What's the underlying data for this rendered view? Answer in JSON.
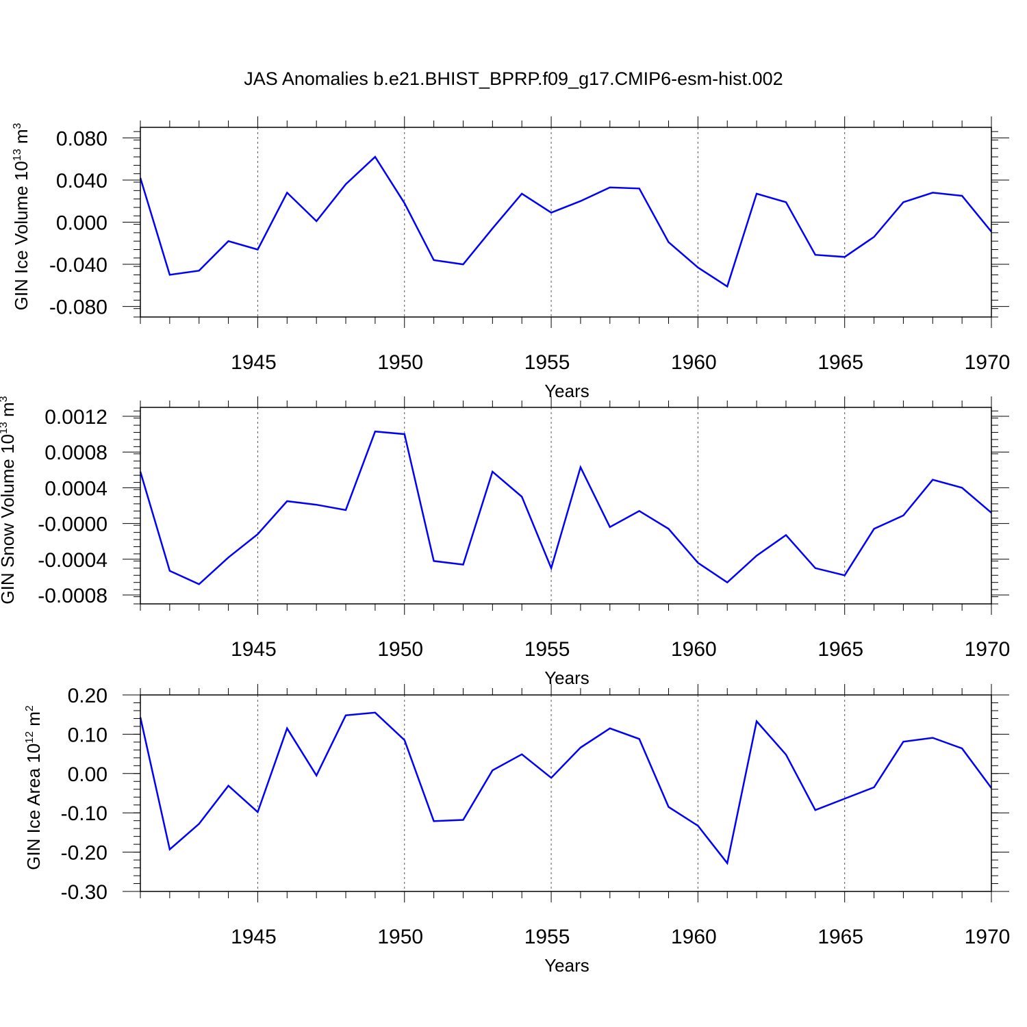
{
  "title": "JAS Anomalies b.e21.BHIST_BPRP.f09_g17.CMIP6-esm-hist.002",
  "line_color": "#0000ff",
  "chart_data": [
    {
      "type": "line",
      "ylabel": "GIN Ice Volume 10",
      "ylabel_sup": "13",
      "ylabel_unit": "m",
      "ylabel_unit_sup": "3",
      "xlabel": "Years",
      "xlim": [
        1941,
        1970
      ],
      "ylim": [
        -0.09,
        0.09
      ],
      "yticks": [
        -0.08,
        -0.04,
        0.0,
        0.04,
        0.08
      ],
      "ytick_labels": [
        "-0.080",
        "-0.040",
        "0.000",
        "0.040",
        "0.080"
      ],
      "xticks": [
        1945,
        1950,
        1955,
        1960,
        1965,
        1970
      ],
      "xtick_labels": [
        "1945",
        "1950",
        "1955",
        "1960",
        "1965",
        "1970"
      ],
      "x": [
        1941,
        1942,
        1943,
        1944,
        1945,
        1946,
        1947,
        1948,
        1949,
        1950,
        1951,
        1952,
        1953,
        1954,
        1955,
        1956,
        1957,
        1958,
        1959,
        1960,
        1961,
        1962,
        1963,
        1964,
        1965,
        1966,
        1967,
        1968,
        1969,
        1970
      ],
      "values": [
        0.042,
        -0.05,
        -0.046,
        -0.018,
        -0.026,
        0.028,
        0.001,
        0.036,
        0.062,
        0.018,
        -0.036,
        -0.04,
        -0.006,
        0.027,
        0.009,
        0.02,
        0.033,
        0.032,
        -0.019,
        -0.043,
        -0.061,
        0.027,
        0.019,
        -0.031,
        -0.033,
        -0.014,
        0.019,
        0.028,
        0.025,
        -0.009
      ]
    },
    {
      "type": "line",
      "ylabel": "GIN Snow Volume 10",
      "ylabel_sup": "13",
      "ylabel_unit": "m",
      "ylabel_unit_sup": "3",
      "xlabel": "Years",
      "xlim": [
        1941,
        1970
      ],
      "ylim": [
        -0.0009,
        0.0013
      ],
      "yticks": [
        -0.0008,
        -0.0004,
        0.0,
        0.0004,
        0.0008,
        0.0012
      ],
      "ytick_labels": [
        "-0.0008",
        "-0.0004",
        "-0.0000",
        "0.0004",
        "0.0008",
        "0.0012"
      ],
      "xticks": [
        1945,
        1950,
        1955,
        1960,
        1965,
        1970
      ],
      "xtick_labels": [
        "1945",
        "1950",
        "1955",
        "1960",
        "1965",
        "1970"
      ],
      "x": [
        1941,
        1942,
        1943,
        1944,
        1945,
        1946,
        1947,
        1948,
        1949,
        1950,
        1951,
        1952,
        1953,
        1954,
        1955,
        1956,
        1957,
        1958,
        1959,
        1960,
        1961,
        1962,
        1963,
        1964,
        1965,
        1966,
        1967,
        1968,
        1969,
        1970
      ],
      "values": [
        0.00058,
        -0.00053,
        -0.00068,
        -0.00038,
        -0.00012,
        0.00025,
        0.00021,
        0.00015,
        0.00103,
        0.001,
        -0.00042,
        -0.00046,
        0.00058,
        0.0003,
        -0.0005,
        0.00063,
        -4e-05,
        0.00014,
        -6e-05,
        -0.00044,
        -0.00066,
        -0.00036,
        -0.00013,
        -0.0005,
        -0.00058,
        -6e-05,
        9e-05,
        0.00049,
        0.0004,
        0.00012
      ]
    },
    {
      "type": "line",
      "ylabel": "GIN Ice Area 10",
      "ylabel_sup": "12",
      "ylabel_unit": "m",
      "ylabel_unit_sup": "2",
      "xlabel": "Years",
      "xlim": [
        1941,
        1970
      ],
      "ylim": [
        -0.3,
        0.2
      ],
      "yticks": [
        -0.3,
        -0.2,
        -0.1,
        0.0,
        0.1,
        0.2
      ],
      "ytick_labels": [
        "-0.30",
        "-0.20",
        "-0.10",
        "0.00",
        "0.10",
        "0.20"
      ],
      "xticks": [
        1945,
        1950,
        1955,
        1960,
        1965,
        1970
      ],
      "xtick_labels": [
        "1945",
        "1950",
        "1955",
        "1960",
        "1965",
        "1970"
      ],
      "x": [
        1941,
        1942,
        1943,
        1944,
        1945,
        1946,
        1947,
        1948,
        1949,
        1950,
        1951,
        1952,
        1953,
        1954,
        1955,
        1956,
        1957,
        1958,
        1959,
        1960,
        1961,
        1962,
        1963,
        1964,
        1965,
        1966,
        1967,
        1968,
        1969,
        1970
      ],
      "values": [
        0.143,
        -0.193,
        -0.128,
        -0.031,
        -0.098,
        0.115,
        -0.005,
        0.148,
        0.155,
        0.085,
        -0.121,
        -0.118,
        0.008,
        0.049,
        -0.011,
        0.066,
        0.115,
        0.088,
        -0.085,
        -0.133,
        -0.228,
        0.133,
        0.048,
        -0.093,
        -0.064,
        -0.035,
        0.081,
        0.091,
        0.064,
        -0.037
      ]
    }
  ]
}
